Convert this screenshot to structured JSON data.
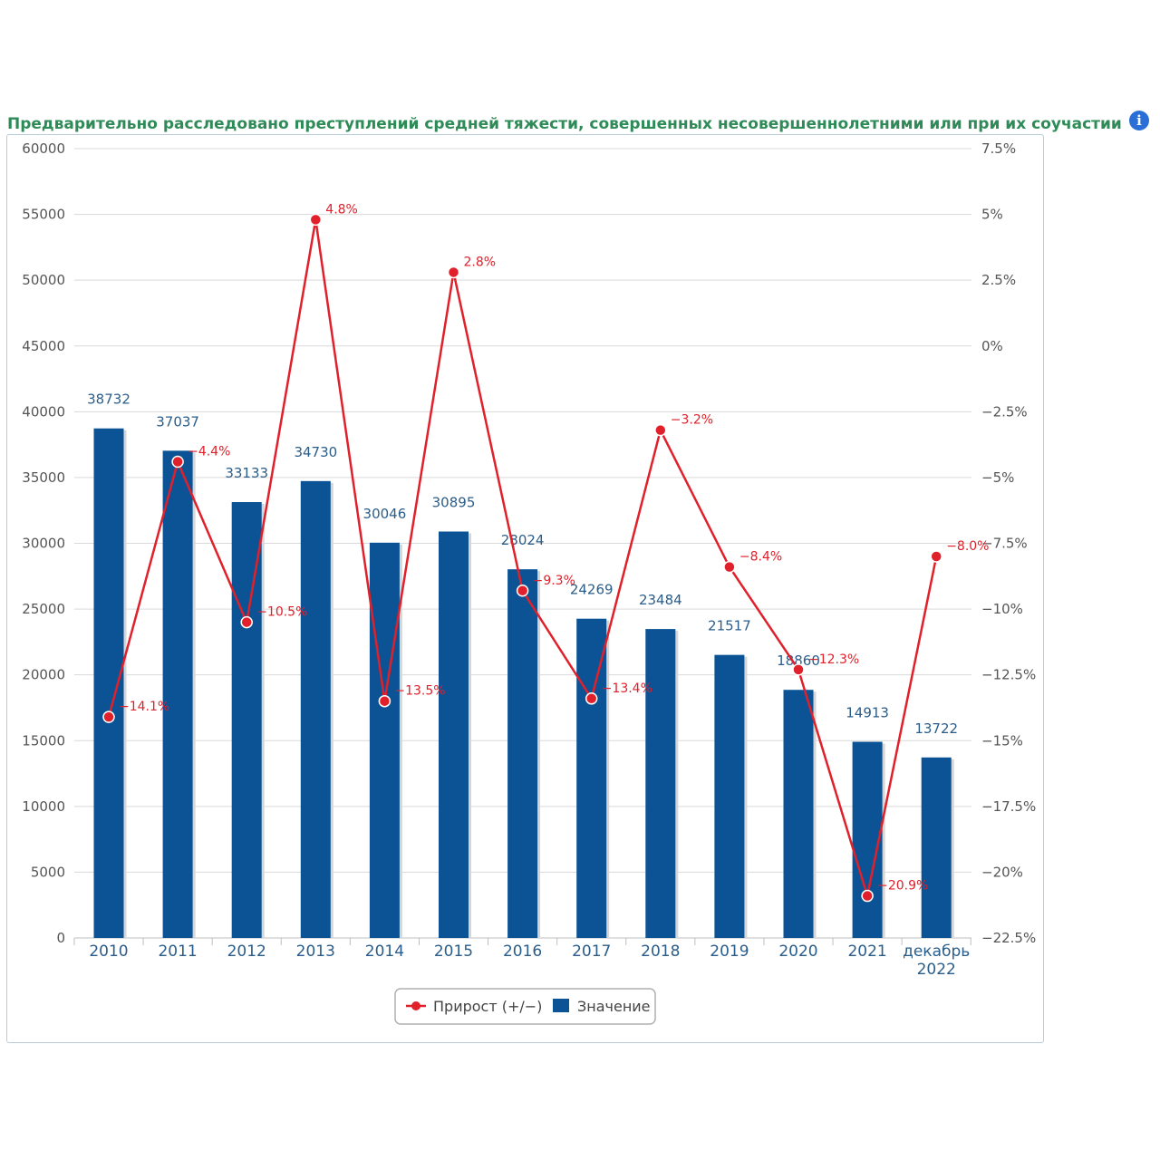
{
  "title": "Предварительно расследовано преступлений средней тяжести, совершенных несовершеннолетними или при их соучастии",
  "info_icon": "info-icon",
  "colors": {
    "bar": "#0b5394",
    "line": "#e0202a",
    "title": "#2e8b57",
    "axis_text": "#555555",
    "label_text": "#2b5d8a",
    "grid": "#d9d9d9"
  },
  "legend": {
    "growth_label": "Прирост (+/−)",
    "value_label": "Значение"
  },
  "chart_data": {
    "type": "bar",
    "categories": [
      "2010",
      "2011",
      "2012",
      "2013",
      "2014",
      "2015",
      "2016",
      "2017",
      "2018",
      "2019",
      "2020",
      "2021",
      "декабрь 2022"
    ],
    "series": [
      {
        "name": "Значение",
        "type": "bar",
        "axis": "left",
        "values": [
          38732,
          37037,
          33133,
          34730,
          30046,
          30895,
          28024,
          24269,
          23484,
          21517,
          18860,
          14913,
          13722
        ],
        "labels": [
          "38732",
          "37037",
          "33133",
          "34730",
          "30046",
          "30895",
          "28024",
          "24269",
          "23484",
          "21517",
          "18860",
          "14913",
          "13722"
        ]
      },
      {
        "name": "Прирост (+/−)",
        "type": "line",
        "axis": "right",
        "values": [
          -14.1,
          -4.4,
          -10.5,
          4.8,
          -13.5,
          2.8,
          -9.3,
          -13.4,
          -3.2,
          -8.4,
          -12.3,
          -20.9,
          -8.0
        ],
        "labels": [
          "−14.1%",
          "−4.4%",
          "−10.5%",
          "4.8%",
          "−13.5%",
          "2.8%",
          "−9.3%",
          "−13.4%",
          "−3.2%",
          "−8.4%",
          "−12.3%",
          "−20.9%",
          "−8.0%"
        ]
      }
    ],
    "y_left": {
      "min": 0,
      "max": 60000,
      "ticks": [
        "0",
        "5000",
        "10000",
        "15000",
        "20000",
        "25000",
        "30000",
        "35000",
        "40000",
        "45000",
        "50000",
        "55000",
        "60000"
      ]
    },
    "y_right": {
      "min": -22.5,
      "max": 7.5,
      "ticks": [
        "−22.5%",
        "−20%",
        "−17.5%",
        "−15%",
        "−12.5%",
        "−10%",
        "−7.5%",
        "−5%",
        "−2.5%",
        "0%",
        "2.5%",
        "5%",
        "7.5%"
      ]
    },
    "grid": true,
    "legend_position": "bottom-center"
  }
}
